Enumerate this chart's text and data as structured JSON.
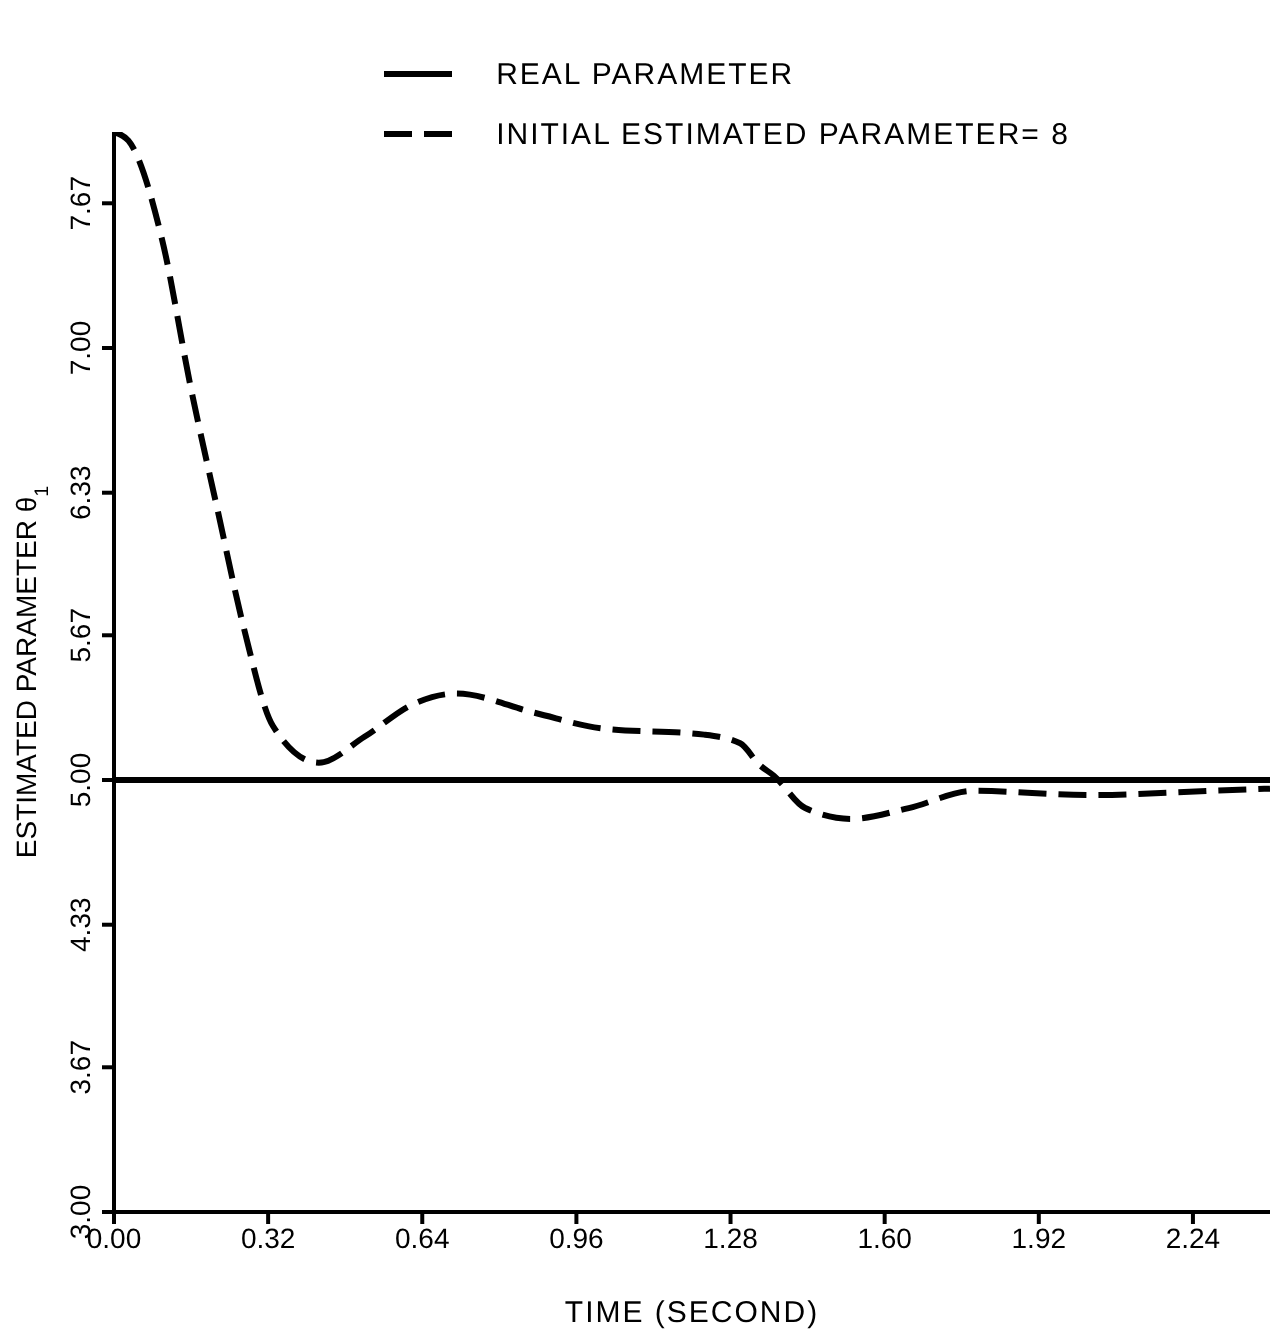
{
  "chart_data": {
    "type": "line",
    "xlabel": "TIME (SECOND)",
    "ylabel": "ESTIMATED PARAMETER θ$_{1}$",
    "xlim": [
      0,
      2.4
    ],
    "ylim": [
      3,
      8
    ],
    "xticks": [
      {
        "value": 0,
        "label": "0.00"
      },
      0.32,
      0.64,
      0.96,
      1.28,
      {
        "value": 1.6,
        "label": "1.60"
      },
      1.92,
      2.24
    ],
    "yticks": [
      {
        "value": 3,
        "label": "3.00"
      },
      3.67,
      4.33,
      {
        "value": 5,
        "label": "5.00"
      },
      5.67,
      6.33,
      {
        "value": 7,
        "label": "7.00"
      },
      7.67
    ],
    "grid": false,
    "legend": "top",
    "marker": "none",
    "series": [
      {
        "name": "REAL PARAMETER",
        "color": "#000000",
        "line_style": "solid",
        "x": [
          0,
          2.4
        ],
        "values": [
          5,
          5
        ]
      },
      {
        "name": "INITIAL ESTIMATED PARAMETER= 8",
        "color": "#000000",
        "line_style": "dashed",
        "x": [
          0,
          0.03,
          0.1,
          0.16,
          0.215,
          0.27,
          0.33,
          0.425,
          0.52,
          0.62,
          0.71,
          0.875,
          1.01,
          1.225,
          1.3,
          1.34,
          1.37,
          1.435,
          1.53,
          1.65,
          1.785,
          2.025,
          2.28,
          2.4
        ],
        "values": [
          8,
          7.96,
          7.5,
          6.81,
          6.25,
          5.7,
          5.25,
          5.08,
          5.2,
          5.35,
          5.4,
          5.31,
          5.24,
          5.21,
          5.17,
          5.07,
          5.02,
          4.87,
          4.82,
          4.87,
          4.95,
          4.93,
          4.95,
          4.96
        ]
      }
    ]
  }
}
